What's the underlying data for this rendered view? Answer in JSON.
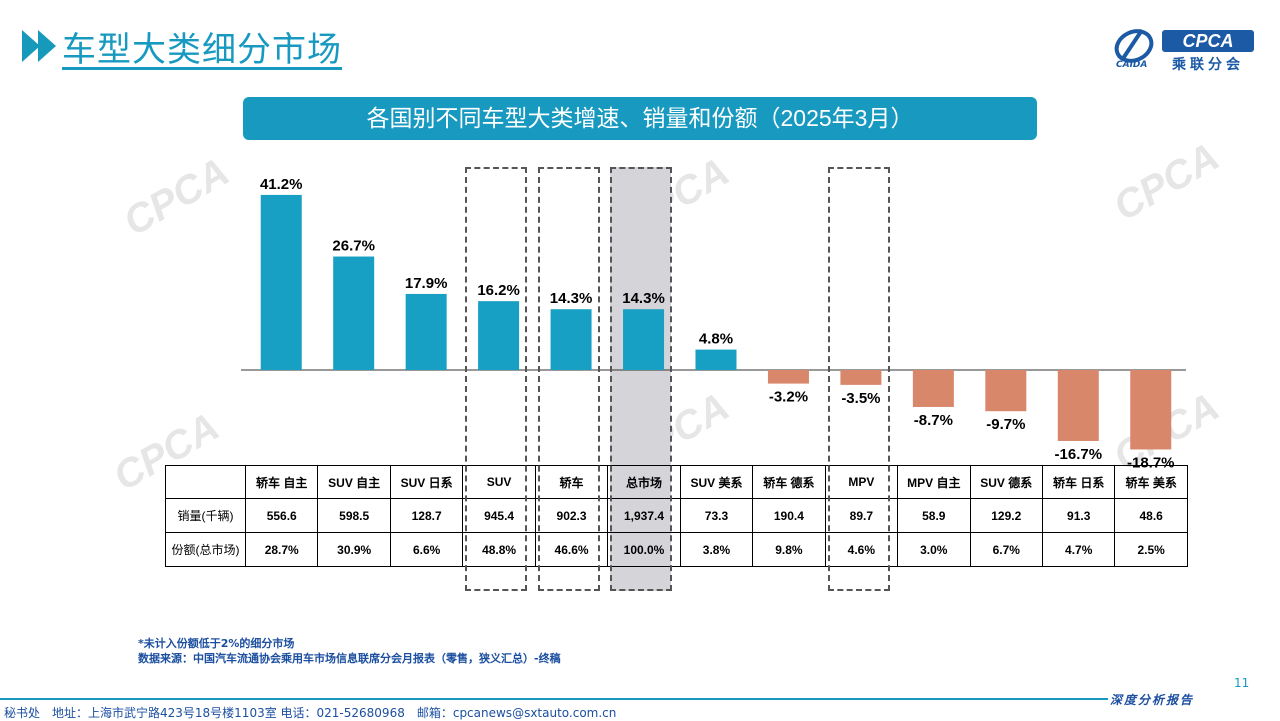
{
  "header": {
    "title": "车型大类细分市场",
    "logo_text": "CPCA",
    "logo_sub": "乘联分会",
    "logo_small": "CAIDA"
  },
  "chart_data": {
    "type": "bar",
    "title": "各国别不同车型大类增速、销量和份额（2025年3月）",
    "categories": [
      "轿车 自主",
      "SUV 自主",
      "SUV 日系",
      "SUV",
      "轿车",
      "总市场",
      "SUV 美系",
      "轿车 德系",
      "MPV",
      "MPV 自主",
      "SUV 德系",
      "轿车 日系",
      "轿车 美系"
    ],
    "values": [
      41.2,
      26.7,
      17.9,
      16.2,
      14.3,
      14.3,
      4.8,
      -3.2,
      -3.5,
      -8.7,
      -9.7,
      -16.7,
      -18.7
    ],
    "value_labels": [
      "41.2%",
      "26.7%",
      "17.9%",
      "16.2%",
      "14.3%",
      "14.3%",
      "4.8%",
      "-3.2%",
      "-3.5%",
      "-8.7%",
      "-9.7%",
      "-16.7%",
      "-18.7%"
    ],
    "unit": "%",
    "positive_color": "#17a0c4",
    "negative_color": "#d9876a",
    "highlighted_category": "总市场",
    "boxed_categories": [
      "SUV",
      "轿车",
      "总市场",
      "MPV"
    ]
  },
  "table": {
    "rows": [
      {
        "label": "销量(千辆)",
        "values": [
          "556.6",
          "598.5",
          "128.7",
          "945.4",
          "902.3",
          "1,937.4",
          "73.3",
          "190.4",
          "89.7",
          "58.9",
          "129.2",
          "91.3",
          "48.6"
        ]
      },
      {
        "label": "份额(总市场)",
        "values": [
          "28.7%",
          "30.9%",
          "6.6%",
          "48.8%",
          "46.6%",
          "100.0%",
          "3.8%",
          "9.8%",
          "4.6%",
          "3.0%",
          "6.7%",
          "4.7%",
          "2.5%"
        ]
      }
    ]
  },
  "notes": {
    "line1": "*未计入份额低于2%的细分市场",
    "line2": "数据来源：中国汽车流通协会乘用车市场信息联席分会月报表（零售，狭义汇总）-终稿"
  },
  "page_number": "11",
  "footer": {
    "address": "秘书处　地址：上海市武宁路423号18号楼1103室  电话：021-52680968　邮箱：cpcanews@sxtauto.com.cn",
    "right_tag": "深度分析报告"
  },
  "colors": {
    "accent": "#1799c0",
    "footer_text": "#1c4fa0"
  }
}
